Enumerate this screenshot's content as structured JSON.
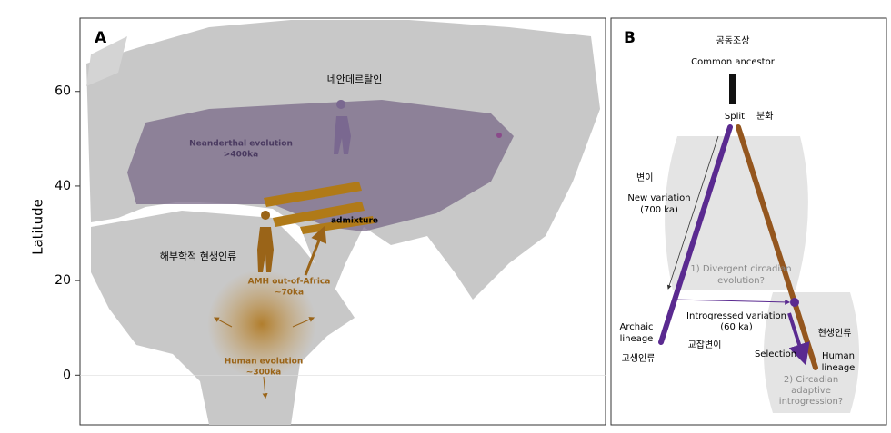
{
  "panel_a": {
    "label": "A",
    "y_axis": {
      "title": "Latitude",
      "lim": [
        -10.5,
        75.5
      ],
      "ticks": [
        0,
        20,
        40,
        60
      ]
    },
    "labels": {
      "neanderthal_ko": "네안데르탈인",
      "neanderthal_1": "Neanderthal evolution",
      "neanderthal_2": ">400ka",
      "admixture": "admixture",
      "human_ko": "해부학적 현생인류",
      "ooa_1": "AMH out-of-Africa",
      "ooa_2": "~70ka",
      "human_1": "Human evolution",
      "human_2": "~300ka"
    }
  },
  "panel_b": {
    "label": "B",
    "labels": {
      "ancestor_ko": "공동조상",
      "ancestor": "Common ancestor",
      "split": "Split",
      "split_ko": "분화",
      "variation_ko": "변이",
      "variation_1": "New variation",
      "variation_2": "(700 ka)",
      "divergent_1": "1) Divergent circadian",
      "divergent_2": "evolution?",
      "archaic_1": "Archaic",
      "archaic_2": "lineage",
      "archaic_ko": "고생인류",
      "introgressed_1": "Introgressed variation",
      "introgressed_2": "(60 ka)",
      "introgressed_ko": "교잡변이",
      "modern_ko": "현생인류",
      "selection": "Selection",
      "human_1": "Human",
      "human_2": "lineage",
      "adaptive_1": "2) Circadian",
      "adaptive_2": "adaptive",
      "adaptive_3": "introgression?"
    }
  }
}
